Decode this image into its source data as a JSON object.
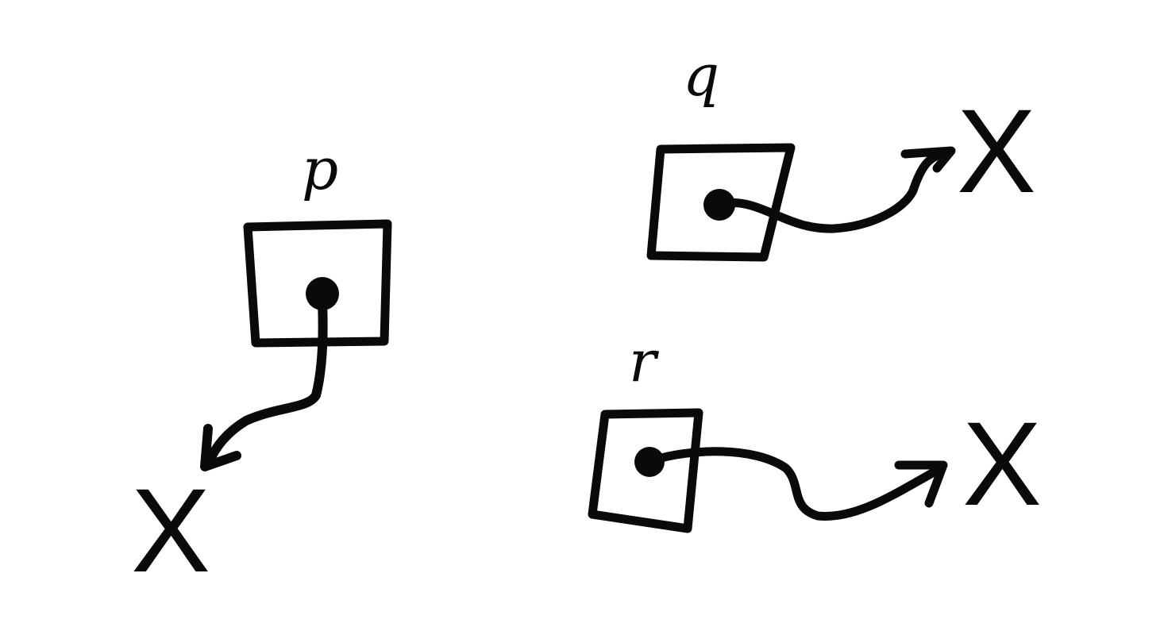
{
  "diagram": {
    "nodes": [
      {
        "id": "p",
        "label": "p",
        "target": "X"
      },
      {
        "id": "q",
        "label": "q",
        "target": "X"
      },
      {
        "id": "r",
        "label": "r",
        "target": "X"
      }
    ]
  }
}
